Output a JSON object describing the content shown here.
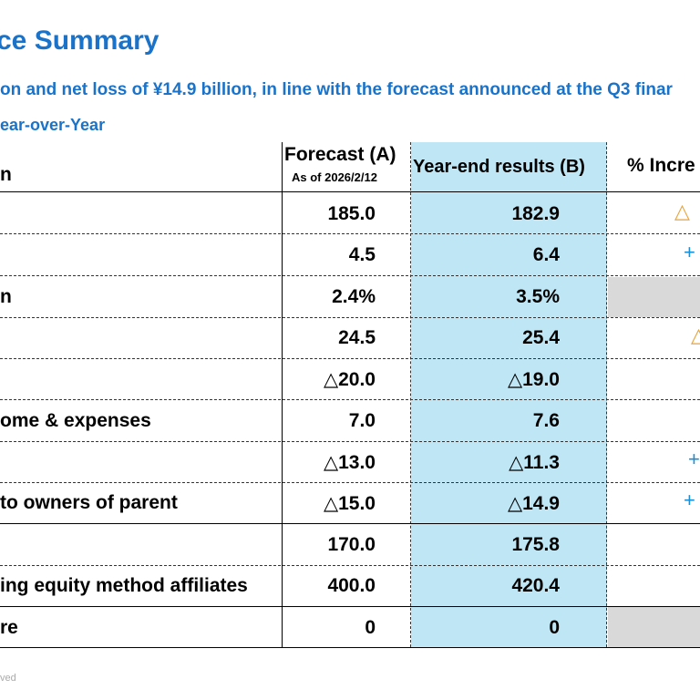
{
  "title": "ce Summary",
  "subtitle": "on and net loss of ¥14.9 billion, in line with the forecast announced at the Q3 finar",
  "subhead": "ear-over-Year",
  "table": {
    "header_label": "n",
    "forecast_header": "Forecast (A)",
    "forecast_date": "As of 2026/2/12",
    "results_header": "Year-end results (B)",
    "pct_header": "% Incre",
    "rows": [
      {
        "label": "",
        "forecast": "185.0",
        "result": "182.9",
        "pct": "△"
      },
      {
        "label": "",
        "forecast": "4.5",
        "result": "6.4",
        "pct": "+"
      },
      {
        "label": "n",
        "forecast": "2.4%",
        "result": "3.5%",
        "pct": ""
      },
      {
        "label": "",
        "forecast": "24.5",
        "result": "25.4",
        "pct": "△"
      },
      {
        "label": "",
        "forecast": "△20.0",
        "result": "△19.0",
        "pct": ""
      },
      {
        "label": "ome & expenses",
        "forecast": "7.0",
        "result": "7.6",
        "pct": ""
      },
      {
        "label": "",
        "forecast": "△13.0",
        "result": "△11.3",
        "pct": "+"
      },
      {
        "label": " to owners of parent",
        "forecast": "△15.0",
        "result": "△14.9",
        "pct": "+"
      },
      {
        "label": "",
        "forecast": "170.0",
        "result": "175.8",
        "pct": ""
      },
      {
        "label": "ing equity method affiliates",
        "forecast": "400.0",
        "result": "420.4",
        "pct": ""
      },
      {
        "label": "re",
        "forecast": "0",
        "result": "0",
        "pct": ""
      }
    ]
  },
  "footer": "ved",
  "colors": {
    "accent": "#1a73c8",
    "highlight": "#bfe6f5",
    "gray": "#d9d9d9",
    "orange": "#e8a33a",
    "blue": "#1a8fd6"
  }
}
